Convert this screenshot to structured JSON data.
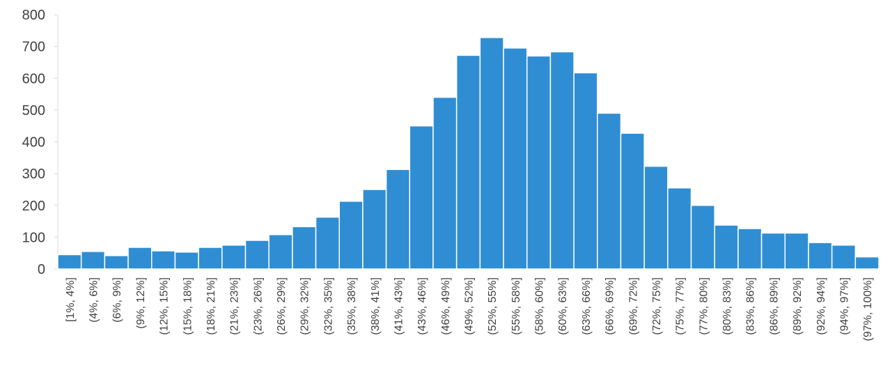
{
  "chart_data": {
    "type": "bar",
    "categories": [
      "[1%, 4%]",
      "(4%, 6%]",
      "(6%, 9%]",
      "(9%, 12%]",
      "(12%, 15%]",
      "(15%, 18%]",
      "(18%, 21%]",
      "(21%, 23%]",
      "(23%, 26%]",
      "(26%, 29%]",
      "(29%, 32%]",
      "(32%, 35%]",
      "(35%, 38%]",
      "(38%, 41%]",
      "(41%, 43%]",
      "(43%, 46%]",
      "(46%, 49%]",
      "(49%, 52%]",
      "(52%, 55%]",
      "(55%, 58%]",
      "(58%, 60%]",
      "(60%, 63%]",
      "(63%, 66%]",
      "(66%, 69%]",
      "(69%, 72%]",
      "(72%, 75%]",
      "(75%, 77%]",
      "(77%, 80%]",
      "(80%, 83%]",
      "(83%, 86%]",
      "(86%, 89%]",
      "(89%, 92%]",
      "(92%, 94%]",
      "(94%, 97%]",
      "(97%, 100%]"
    ],
    "values": [
      45,
      55,
      42,
      68,
      57,
      53,
      68,
      75,
      90,
      108,
      133,
      163,
      213,
      250,
      313,
      450,
      540,
      672,
      728,
      695,
      670,
      683,
      617,
      490,
      427,
      323,
      255,
      200,
      138,
      127,
      113,
      113,
      83,
      75,
      38
    ],
    "color": "#2f8ed3",
    "ylim": [
      0,
      800
    ],
    "yticks": [
      0,
      100,
      200,
      300,
      400,
      500,
      600,
      700,
      800
    ],
    "grid": false
  }
}
